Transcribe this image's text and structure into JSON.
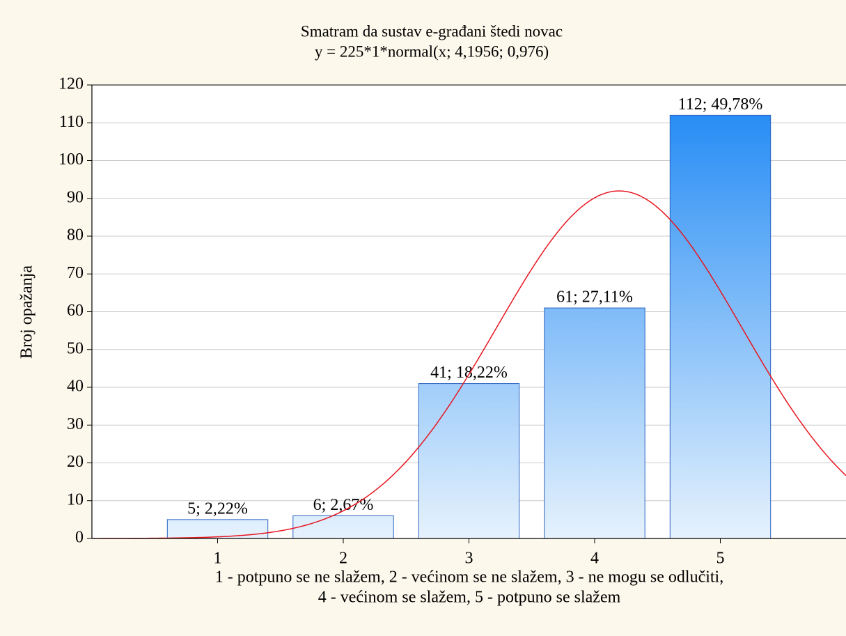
{
  "chart_data": {
    "type": "histogram",
    "title": "Smatram da sustav e-građani štedi novac",
    "subtitle": "y = 225*1*normal(x; 4,1956; 0,976)",
    "y_label": "Broj opažanja",
    "x_label_lines": [
      "1 - potpuno se ne slažem, 2 - većinom se ne slažem, 3 - ne mogu se odlučiti,",
      "4 - većinom se slažem, 5 - potpuno se slažem"
    ],
    "x": [
      1,
      2,
      3,
      4,
      5
    ],
    "values": [
      5,
      6,
      41,
      61,
      112
    ],
    "value_labels": [
      "5; 2,22%",
      "6; 2,67%",
      "41; 18,22%",
      "61; 27,11%",
      "112; 49,78%"
    ],
    "fit": {
      "n": 225,
      "scale": 1,
      "mean": 4.1956,
      "sd": 0.976,
      "color": "#e8141e"
    },
    "bar_color_low": "#e6f2fd",
    "bar_color_high": "#1a86f4",
    "bar_edge": "#2a62c0",
    "xlim": [
      0,
      6
    ],
    "xticks": [
      1,
      2,
      3,
      4,
      5
    ],
    "ylim": [
      0,
      120
    ],
    "yticks": [
      0,
      10,
      20,
      30,
      40,
      50,
      60,
      70,
      80,
      90,
      100,
      110,
      120
    ],
    "grid": true
  }
}
